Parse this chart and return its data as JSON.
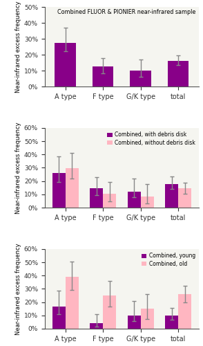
{
  "categories": [
    "A type",
    "F type",
    "G/K type",
    "total"
  ],
  "panel1": {
    "title": "Combined FLUOR & PIONIER near-infrared sample",
    "ylabel": "Near-infrared excess frequency",
    "ylim": [
      0,
      0.5
    ],
    "yticks": [
      0.0,
      0.1,
      0.2,
      0.3,
      0.4,
      0.5
    ],
    "bar_values": [
      0.275,
      0.125,
      0.1,
      0.16
    ],
    "bar_errors_lo": [
      0.055,
      0.04,
      0.04,
      0.025
    ],
    "bar_errors_hi": [
      0.095,
      0.055,
      0.07,
      0.035
    ],
    "bar_color": "#880088"
  },
  "panel2": {
    "ylabel": "Near-infrared excess frequency",
    "ylim": [
      0,
      0.6
    ],
    "yticks": [
      0.0,
      0.1,
      0.2,
      0.3,
      0.4,
      0.5,
      0.6
    ],
    "legend1": "Combined, with debris disk",
    "legend2": "Combined, without debris disk",
    "color1": "#880088",
    "color2": "#ffb6c1",
    "values1": [
      0.26,
      0.148,
      0.12,
      0.18
    ],
    "errors1_lo": [
      0.065,
      0.055,
      0.04,
      0.04
    ],
    "errors1_hi": [
      0.125,
      0.08,
      0.1,
      0.055
    ],
    "values2": [
      0.295,
      0.105,
      0.085,
      0.145
    ],
    "errors2_lo": [
      0.075,
      0.06,
      0.055,
      0.04
    ],
    "errors2_hi": [
      0.115,
      0.09,
      0.095,
      0.045
    ]
  },
  "panel3": {
    "ylabel": "Near-infrared excess frequency",
    "ylim": [
      0,
      0.6
    ],
    "yticks": [
      0.0,
      0.1,
      0.2,
      0.3,
      0.4,
      0.5,
      0.6
    ],
    "legend1": "Combined, young",
    "legend2": "Combined, old",
    "color1": "#880088",
    "color2": "#ffb6c1",
    "values1": [
      0.165,
      0.04,
      0.1,
      0.1
    ],
    "errors1_lo": [
      0.055,
      0.025,
      0.045,
      0.03
    ],
    "errors1_hi": [
      0.12,
      0.07,
      0.11,
      0.055
    ],
    "values2": [
      0.39,
      0.25,
      0.15,
      0.26
    ],
    "errors2_lo": [
      0.1,
      0.085,
      0.075,
      0.06
    ],
    "errors2_hi": [
      0.115,
      0.11,
      0.11,
      0.065
    ]
  },
  "bar_width": 0.35,
  "error_color": "#888888",
  "error_capsize": 2,
  "axes_bg": "#f5f5f0",
  "fig_bg": "#ffffff"
}
